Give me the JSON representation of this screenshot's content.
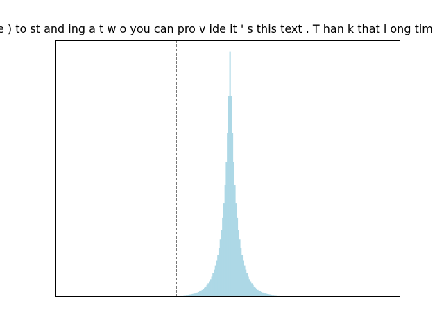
{
  "chart_data": {
    "type": "histogram",
    "title": "e ) to st and ing a t w o you can pro v ide it ' s this text . T han k that l ong tim",
    "xlabel": "",
    "ylabel": "",
    "xlim": [
      -1.0,
      1.85
    ],
    "ylim": [
      0,
      1.0
    ],
    "x_ticks_shown": false,
    "y_ticks_shown": false,
    "grid": false,
    "legend": "none",
    "bar_color": "#add8e6",
    "reference_line": {
      "x": 0.0,
      "style": "dashed",
      "color": "#000000"
    },
    "bins": {
      "start": -1.0,
      "width": 0.01,
      "counts": [
        0,
        0,
        0,
        0,
        0,
        0,
        0,
        0,
        0,
        0,
        0,
        0,
        0,
        0,
        0,
        0,
        0,
        0,
        0,
        0,
        0,
        0,
        0,
        0,
        0,
        0,
        0,
        0,
        0,
        0,
        0,
        0,
        0,
        0,
        0,
        0,
        0,
        0,
        0,
        0,
        0,
        0,
        0,
        0,
        0,
        0,
        0,
        0,
        0,
        0,
        0,
        0,
        0,
        0,
        0,
        0,
        0,
        0,
        0,
        0,
        0,
        0,
        0,
        0,
        0,
        0,
        0,
        0,
        0,
        0,
        0,
        0,
        0,
        0,
        0,
        0,
        0,
        0,
        0,
        0,
        0,
        0,
        0,
        0,
        0,
        0,
        0,
        0,
        0,
        0,
        0.001,
        0.001,
        0.001,
        0.001,
        0.001,
        0.001,
        0.001,
        0.001,
        0.002,
        0.002,
        0.002,
        0.002,
        0.002,
        0.003,
        0.003,
        0.003,
        0.004,
        0.004,
        0.005,
        0.005,
        0.006,
        0.007,
        0.008,
        0.009,
        0.01,
        0.011,
        0.013,
        0.015,
        0.017,
        0.02,
        0.023,
        0.026,
        0.03,
        0.035,
        0.04,
        0.046,
        0.053,
        0.061,
        0.07,
        0.081,
        0.094,
        0.109,
        0.126,
        0.146,
        0.17,
        0.198,
        0.232,
        0.272,
        0.321,
        0.38,
        0.454,
        0.548,
        0.668,
        0.82,
        1.0,
        0.82,
        0.668,
        0.548,
        0.454,
        0.38,
        0.321,
        0.272,
        0.232,
        0.198,
        0.17,
        0.146,
        0.126,
        0.109,
        0.094,
        0.081,
        0.07,
        0.061,
        0.053,
        0.046,
        0.04,
        0.035,
        0.03,
        0.026,
        0.023,
        0.02,
        0.017,
        0.015,
        0.013,
        0.011,
        0.01,
        0.009,
        0.008,
        0.007,
        0.006,
        0.005,
        0.005,
        0.004,
        0.004,
        0.003,
        0.003,
        0.003,
        0.002,
        0.002,
        0.002,
        0.002,
        0.002,
        0.001,
        0.001,
        0.001,
        0.001,
        0.001,
        0.001,
        0.001,
        0.001,
        0,
        0,
        0,
        0,
        0,
        0,
        0,
        0,
        0,
        0,
        0,
        0,
        0,
        0,
        0,
        0,
        0,
        0,
        0,
        0,
        0,
        0,
        0,
        0,
        0,
        0,
        0,
        0,
        0,
        0,
        0,
        0,
        0,
        0,
        0,
        0,
        0,
        0,
        0,
        0,
        0,
        0,
        0,
        0,
        0,
        0,
        0,
        0,
        0,
        0,
        0,
        0,
        0,
        0,
        0,
        0,
        0,
        0,
        0,
        0,
        0,
        0,
        0,
        0,
        0,
        0,
        0,
        0,
        0,
        0,
        0,
        0,
        0,
        0,
        0,
        0,
        0,
        0,
        0,
        0,
        0,
        0,
        0,
        0,
        0,
        0,
        0,
        0,
        0,
        0,
        0,
        0,
        0,
        0,
        0,
        0,
        0,
        0,
        0,
        0,
        0,
        0,
        0,
        0,
        0,
        0,
        0,
        0,
        0,
        0,
        0,
        0,
        0,
        0,
        0,
        0,
        0,
        0,
        0,
        0,
        0,
        0,
        0,
        0,
        0,
        0,
        0,
        0,
        0,
        0,
        0,
        0,
        0,
        0,
        0,
        0,
        0,
        0,
        0,
        0,
        0,
        0,
        0,
        0,
        0,
        0,
        0,
        0,
        0,
        0,
        0,
        0,
        0,
        0,
        0,
        0,
        0,
        0,
        0,
        0,
        0,
        0,
        0,
        0,
        0,
        0,
        0
      ]
    }
  }
}
